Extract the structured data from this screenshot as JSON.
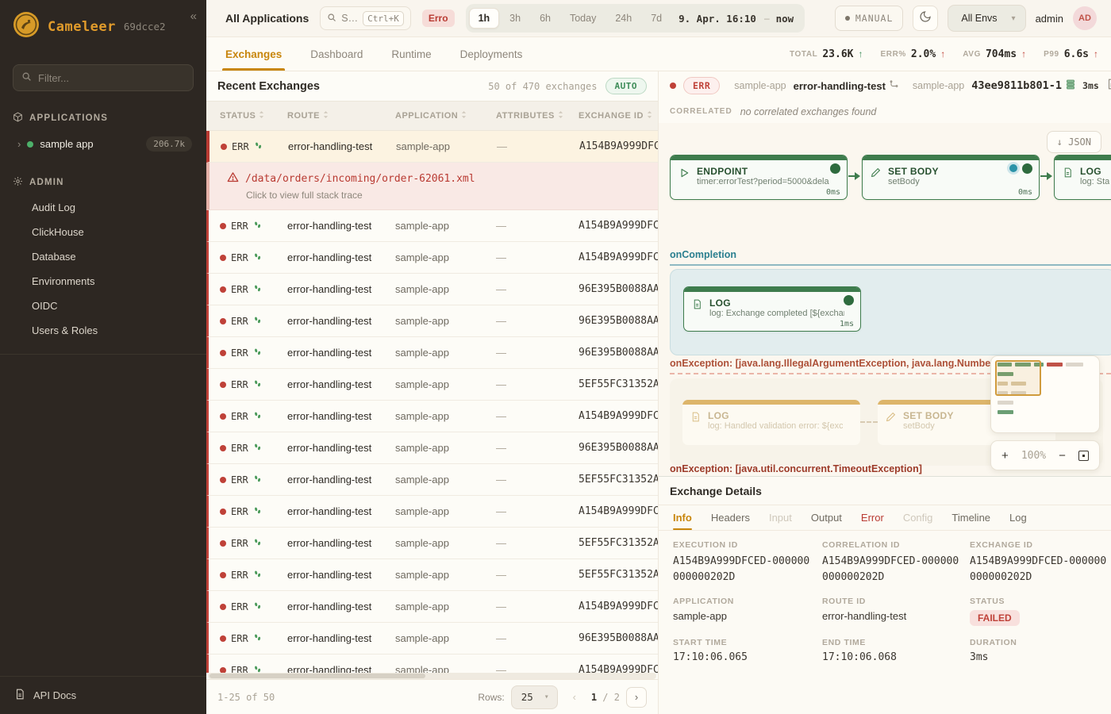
{
  "colors": {
    "accent": "#c8860d",
    "error": "#b93a32",
    "success": "#3f8d5a",
    "teal": "#2a7f8f",
    "sidebar_bg": "#2d2722",
    "gold": "#e09b2b"
  },
  "sidebar": {
    "brand": "Cameleer",
    "build": "69dcce2",
    "collapse_icon": "«",
    "filter_placeholder": "Filter...",
    "applications_header": "APPLICATIONS",
    "app_item": {
      "chevron": "›",
      "name": "sample app",
      "count": "206.7k"
    },
    "admin_header": "ADMIN",
    "admin_items": [
      "Audit Log",
      "ClickHouse",
      "Database",
      "Environments",
      "OIDC",
      "Users & Roles"
    ],
    "api_docs": "API Docs"
  },
  "topbar": {
    "scope": "All Applications",
    "search_placeholder": "S…",
    "search_shortcut": "Ctrl+K",
    "filter_chip": "Erro",
    "time_ranges": [
      "1h",
      "3h",
      "6h",
      "Today",
      "24h",
      "7d"
    ],
    "active_range": "1h",
    "range_from": "9. Apr. 16:10",
    "range_sep": "–",
    "range_to": "now",
    "manual_label": "MANUAL",
    "env_select": "All Envs",
    "env_caret": "▾",
    "username": "admin",
    "avatar_initials": "AD"
  },
  "tabs": {
    "items": [
      "Exchanges",
      "Dashboard",
      "Runtime",
      "Deployments"
    ],
    "active": "Exchanges"
  },
  "stats": [
    {
      "label": "TOTAL",
      "value": "23.6K",
      "arrow": "↑",
      "trend_color": "green"
    },
    {
      "label": "ERR%",
      "value": "2.0%",
      "arrow": "↑",
      "trend_color": "red"
    },
    {
      "label": "AVG",
      "value": "704ms",
      "arrow": "↑",
      "trend_color": "red"
    },
    {
      "label": "P99",
      "value": "6.6s",
      "arrow": "↑",
      "trend_color": "red"
    }
  ],
  "exchanges": {
    "title": "Recent Exchanges",
    "count_text": "50 of 470 exchanges",
    "auto_badge": "AUTO",
    "columns": [
      "STATUS",
      "ROUTE",
      "APPLICATION",
      "ATTRIBUTES",
      "EXCHANGE ID"
    ],
    "error_detail": {
      "path": "/data/orders/incoming/order-62061.xml",
      "hint": "Click to view full stack trace"
    },
    "rows": [
      {
        "status": "ERR",
        "route": "error-handling-test",
        "app": "sample-app",
        "attributes": "—",
        "exchange_id": "A154B9A999DFC",
        "selected": true
      },
      {
        "status": "ERR",
        "route": "error-handling-test",
        "app": "sample-app",
        "attributes": "—",
        "exchange_id": "A154B9A999DFC"
      },
      {
        "status": "ERR",
        "route": "error-handling-test",
        "app": "sample-app",
        "attributes": "—",
        "exchange_id": "A154B9A999DFC"
      },
      {
        "status": "ERR",
        "route": "error-handling-test",
        "app": "sample-app",
        "attributes": "—",
        "exchange_id": "96E395B0088AA"
      },
      {
        "status": "ERR",
        "route": "error-handling-test",
        "app": "sample-app",
        "attributes": "—",
        "exchange_id": "96E395B0088AA"
      },
      {
        "status": "ERR",
        "route": "error-handling-test",
        "app": "sample-app",
        "attributes": "—",
        "exchange_id": "96E395B0088AA"
      },
      {
        "status": "ERR",
        "route": "error-handling-test",
        "app": "sample-app",
        "attributes": "—",
        "exchange_id": "5EF55FC31352A"
      },
      {
        "status": "ERR",
        "route": "error-handling-test",
        "app": "sample-app",
        "attributes": "—",
        "exchange_id": "A154B9A999DFC"
      },
      {
        "status": "ERR",
        "route": "error-handling-test",
        "app": "sample-app",
        "attributes": "—",
        "exchange_id": "96E395B0088AA"
      },
      {
        "status": "ERR",
        "route": "error-handling-test",
        "app": "sample-app",
        "attributes": "—",
        "exchange_id": "5EF55FC31352A"
      },
      {
        "status": "ERR",
        "route": "error-handling-test",
        "app": "sample-app",
        "attributes": "—",
        "exchange_id": "A154B9A999DFC"
      },
      {
        "status": "ERR",
        "route": "error-handling-test",
        "app": "sample-app",
        "attributes": "—",
        "exchange_id": "5EF55FC31352A"
      },
      {
        "status": "ERR",
        "route": "error-handling-test",
        "app": "sample-app",
        "attributes": "—",
        "exchange_id": "5EF55FC31352A"
      },
      {
        "status": "ERR",
        "route": "error-handling-test",
        "app": "sample-app",
        "attributes": "—",
        "exchange_id": "A154B9A999DFC"
      },
      {
        "status": "ERR",
        "route": "error-handling-test",
        "app": "sample-app",
        "attributes": "—",
        "exchange_id": "96E395B0088AA"
      },
      {
        "status": "ERR",
        "route": "error-handling-test",
        "app": "sample-app",
        "attributes": "—",
        "exchange_id": "A154B9A999DFC"
      }
    ],
    "footer": {
      "range": "1-25 of 50",
      "rows_label": "Rows:",
      "rows_value": "25",
      "rows_caret": "▾",
      "prev": "‹",
      "page_current": "1",
      "page_sep": "/",
      "page_total": "2",
      "next": "›"
    }
  },
  "flow": {
    "header": {
      "status": "ERR",
      "app": "sample-app",
      "route": "error-handling-test",
      "app2": "sample-app",
      "exchange_id": "43ee9811b801-1",
      "duration": "3ms"
    },
    "correlated_label": "CORRELATED",
    "correlated_text": "no correlated exchanges found",
    "json_arrow": "↓",
    "json_label": "JSON",
    "nodes": {
      "endpoint": {
        "title": "ENDPOINT",
        "subtitle": "timer:errorTest?period=5000&dela",
        "ms": "0ms"
      },
      "setbody": {
        "title": "SET BODY",
        "subtitle": "setBody",
        "ms": "0ms"
      },
      "log3": {
        "title": "LOG",
        "subtitle": "log: Sta"
      }
    },
    "oncompletion": {
      "label": "onCompletion",
      "node": {
        "title": "LOG",
        "subtitle": "log: Exchange completed [${exchan",
        "ms": "1ms"
      }
    },
    "onexception1": {
      "label": "onException: [java.lang.IllegalArgumentException, java.lang.NumberForm",
      "log": {
        "title": "LOG",
        "subtitle": "log: Handled validation error: ${exce"
      },
      "setbody": {
        "title": "SET BODY",
        "subtitle": "setBody"
      }
    },
    "onexception2": {
      "label": "onException: [java.util.concurrent.TimeoutException]"
    },
    "minimap": {
      "rows": [
        [
          [
            "g",
            18
          ],
          [
            "g",
            20
          ],
          [
            "g",
            12
          ],
          [
            "r",
            20
          ],
          [
            "x",
            22
          ]
        ],
        [
          [
            "g",
            20
          ]
        ],
        [
          [
            "t",
            13
          ],
          [
            "t",
            19
          ]
        ],
        [
          [
            "x",
            13
          ],
          [
            "x",
            19
          ]
        ],
        [
          [
            "x",
            20
          ]
        ],
        [
          [
            "g",
            20
          ]
        ]
      ]
    },
    "zoom": {
      "plus": "+",
      "level": "100%",
      "minus": "−"
    }
  },
  "details": {
    "title": "Exchange Details",
    "tabs": [
      {
        "label": "Info",
        "state": "active"
      },
      {
        "label": "Headers",
        "state": "normal"
      },
      {
        "label": "Input",
        "state": "disabled"
      },
      {
        "label": "Output",
        "state": "normal"
      },
      {
        "label": "Error",
        "state": "error"
      },
      {
        "label": "Config",
        "state": "disabled"
      },
      {
        "label": "Timeline",
        "state": "normal"
      },
      {
        "label": "Log",
        "state": "normal"
      }
    ],
    "fields": [
      {
        "label": "EXECUTION ID",
        "value": "A154B9A999DFCED-000000000000202D",
        "style": "idwrap"
      },
      {
        "label": "CORRELATION ID",
        "value": "A154B9A999DFCED-000000000000202D",
        "style": "idwrap"
      },
      {
        "label": "EXCHANGE ID",
        "value": "A154B9A999DFCED-000000000000202D",
        "style": "idwrap"
      },
      {
        "label": "APPLICATION",
        "value": "sample-app",
        "style": "plain"
      },
      {
        "label": "ROUTE ID",
        "value": "error-handling-test",
        "style": "plain"
      },
      {
        "label": "STATUS",
        "value": "FAILED",
        "style": "badge"
      },
      {
        "label": "START TIME",
        "value": "17:10:06.065",
        "style": "mono"
      },
      {
        "label": "END TIME",
        "value": "17:10:06.068",
        "style": "mono"
      },
      {
        "label": "DURATION",
        "value": "3ms",
        "style": "mono"
      }
    ]
  }
}
